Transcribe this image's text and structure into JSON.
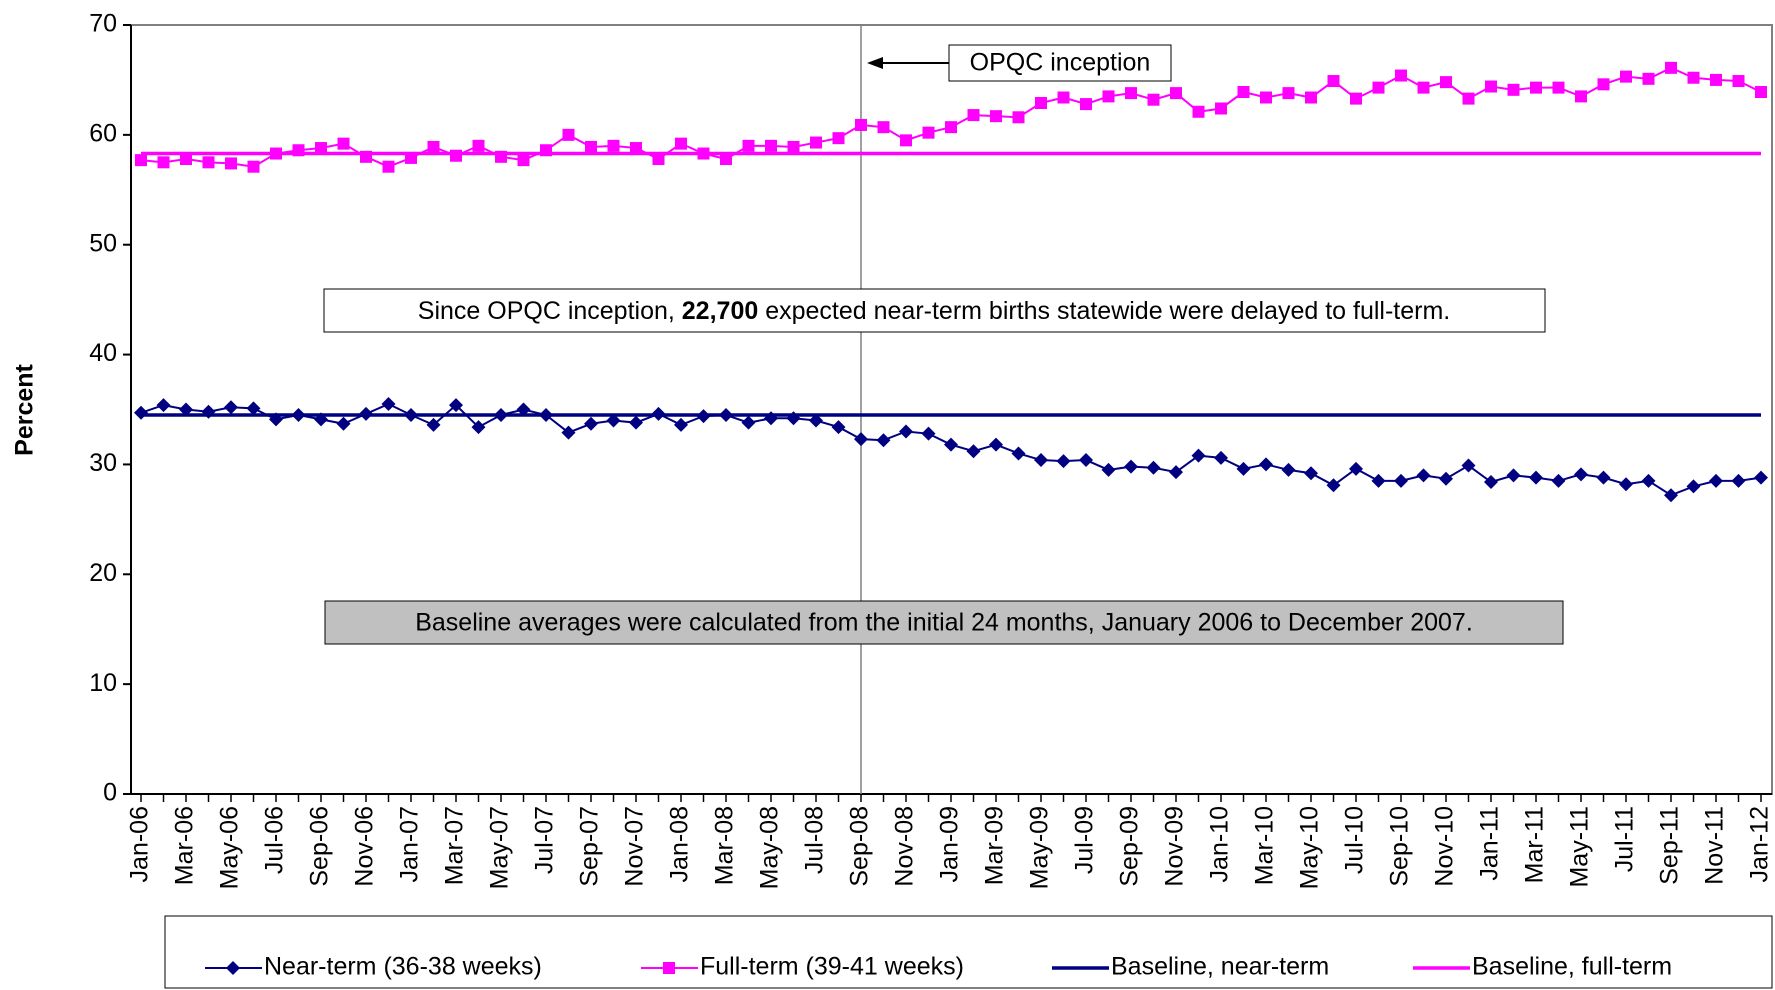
{
  "chart_data": {
    "type": "line",
    "y_label": "Percent",
    "categories": [
      "Jan-06",
      null,
      "Mar-06",
      null,
      "May-06",
      null,
      "Jul-06",
      null,
      "Sep-06",
      null,
      "Nov-06",
      null,
      "Jan-07",
      null,
      "Mar-07",
      null,
      "May-07",
      null,
      "Jul-07",
      null,
      "Sep-07",
      null,
      "Nov-07",
      null,
      "Jan-08",
      null,
      "Mar-08",
      null,
      "May-08",
      null,
      "Jul-08",
      null,
      "Sep-08",
      null,
      "Nov-08",
      null,
      "Jan-09",
      null,
      "Mar-09",
      null,
      "May-09",
      null,
      "Jul-09",
      null,
      "Sep-09",
      null,
      "Nov-09",
      null,
      "Jan-10",
      null,
      "Mar-10",
      null,
      "May-10",
      null,
      "Jul-10",
      null,
      "Sep-10",
      null,
      "Nov-10",
      null,
      "Jan-11",
      null,
      "Mar-11",
      null,
      "May-11",
      null,
      "Jul-11",
      null,
      "Sep-11",
      null,
      "Nov-11",
      null,
      "Jan-12"
    ],
    "series": [
      {
        "name": "Near-term (36-38 weeks)",
        "color": "#000080",
        "marker": "diamond",
        "values": [
          34.7,
          35.4,
          35.0,
          34.8,
          35.2,
          35.1,
          34.1,
          34.5,
          34.1,
          33.7,
          34.6,
          35.5,
          34.5,
          33.6,
          35.4,
          33.4,
          34.5,
          35.0,
          34.5,
          32.9,
          33.7,
          34.0,
          33.8,
          34.6,
          33.6,
          34.4,
          34.5,
          33.8,
          34.2,
          34.2,
          34.0,
          33.4,
          32.3,
          32.2,
          33.0,
          32.8,
          31.8,
          31.2,
          31.8,
          31.0,
          30.4,
          30.3,
          30.4,
          29.5,
          29.8,
          29.7,
          29.3,
          30.8,
          30.6,
          29.6,
          30.0,
          29.5,
          29.2,
          28.1,
          29.6,
          28.5,
          28.5,
          29.0,
          28.7,
          29.9,
          28.4,
          29.0,
          28.8,
          28.5,
          29.1,
          28.8,
          28.2,
          28.5,
          27.2,
          28.0,
          28.5,
          28.5,
          28.8
        ]
      },
      {
        "name": "Full-term (39-41 weeks)",
        "color": "#ff00ff",
        "marker": "square",
        "values": [
          57.7,
          57.5,
          57.8,
          57.5,
          57.4,
          57.1,
          58.3,
          58.6,
          58.8,
          59.2,
          58.0,
          57.1,
          57.9,
          58.9,
          58.1,
          59.0,
          58.0,
          57.7,
          58.6,
          60.0,
          58.9,
          59.0,
          58.8,
          57.8,
          59.2,
          58.3,
          57.8,
          59.0,
          59.0,
          58.9,
          59.3,
          59.7,
          60.9,
          60.7,
          59.5,
          60.2,
          60.7,
          61.8,
          61.7,
          61.6,
          62.9,
          63.4,
          62.8,
          63.5,
          63.8,
          63.2,
          63.8,
          62.1,
          62.4,
          63.9,
          63.4,
          63.8,
          63.4,
          64.9,
          63.3,
          64.3,
          65.4,
          64.3,
          64.8,
          63.3,
          64.4,
          64.1,
          64.3,
          64.3,
          63.5,
          64.6,
          65.3,
          65.1,
          66.1,
          65.2,
          65.0,
          64.9,
          63.9
        ]
      },
      {
        "name": "Baseline, near-term",
        "color": "#000080",
        "marker": "none",
        "values": [
          34.5,
          34.5,
          34.5,
          34.5,
          34.5,
          34.5,
          34.5,
          34.5,
          34.5,
          34.5,
          34.5,
          34.5,
          34.5,
          34.5,
          34.5,
          34.5,
          34.5,
          34.5,
          34.5,
          34.5,
          34.5,
          34.5,
          34.5,
          34.5,
          34.5,
          34.5,
          34.5,
          34.5,
          34.5,
          34.5,
          34.5,
          34.5,
          34.5,
          34.5,
          34.5,
          34.5,
          34.5,
          34.5,
          34.5,
          34.5,
          34.5,
          34.5,
          34.5,
          34.5,
          34.5,
          34.5,
          34.5,
          34.5,
          34.5,
          34.5,
          34.5,
          34.5,
          34.5,
          34.5,
          34.5,
          34.5,
          34.5,
          34.5,
          34.5,
          34.5,
          34.5,
          34.5,
          34.5,
          34.5,
          34.5,
          34.5,
          34.5,
          34.5,
          34.5,
          34.5,
          34.5,
          34.5,
          34.5
        ]
      },
      {
        "name": "Baseline, full-term",
        "color": "#ff00ff",
        "marker": "none",
        "values": [
          58.3,
          58.3,
          58.3,
          58.3,
          58.3,
          58.3,
          58.3,
          58.3,
          58.3,
          58.3,
          58.3,
          58.3,
          58.3,
          58.3,
          58.3,
          58.3,
          58.3,
          58.3,
          58.3,
          58.3,
          58.3,
          58.3,
          58.3,
          58.3,
          58.3,
          58.3,
          58.3,
          58.3,
          58.3,
          58.3,
          58.3,
          58.3,
          58.3,
          58.3,
          58.3,
          58.3,
          58.3,
          58.3,
          58.3,
          58.3,
          58.3,
          58.3,
          58.3,
          58.3,
          58.3,
          58.3,
          58.3,
          58.3,
          58.3,
          58.3,
          58.3,
          58.3,
          58.3,
          58.3,
          58.3,
          58.3,
          58.3,
          58.3,
          58.3,
          58.3,
          58.3,
          58.3,
          58.3,
          58.3,
          58.3,
          58.3,
          58.3,
          58.3,
          58.3,
          58.3,
          58.3,
          58.3,
          58.3
        ]
      }
    ],
    "ylim": [
      0,
      70
    ],
    "yticks": [
      0,
      10,
      20,
      30,
      40,
      50,
      60,
      70
    ],
    "event_category": "Sep-08",
    "event_label": "OPQC inception",
    "note": [
      "Since OPQC inception, ",
      "22,700",
      " expected near-term births statewide were delayed to full-term."
    ],
    "baseline_note": "Baseline averages were calculated from the initial 24 months, January 2006 to December 2007.",
    "legend": "bottom"
  }
}
